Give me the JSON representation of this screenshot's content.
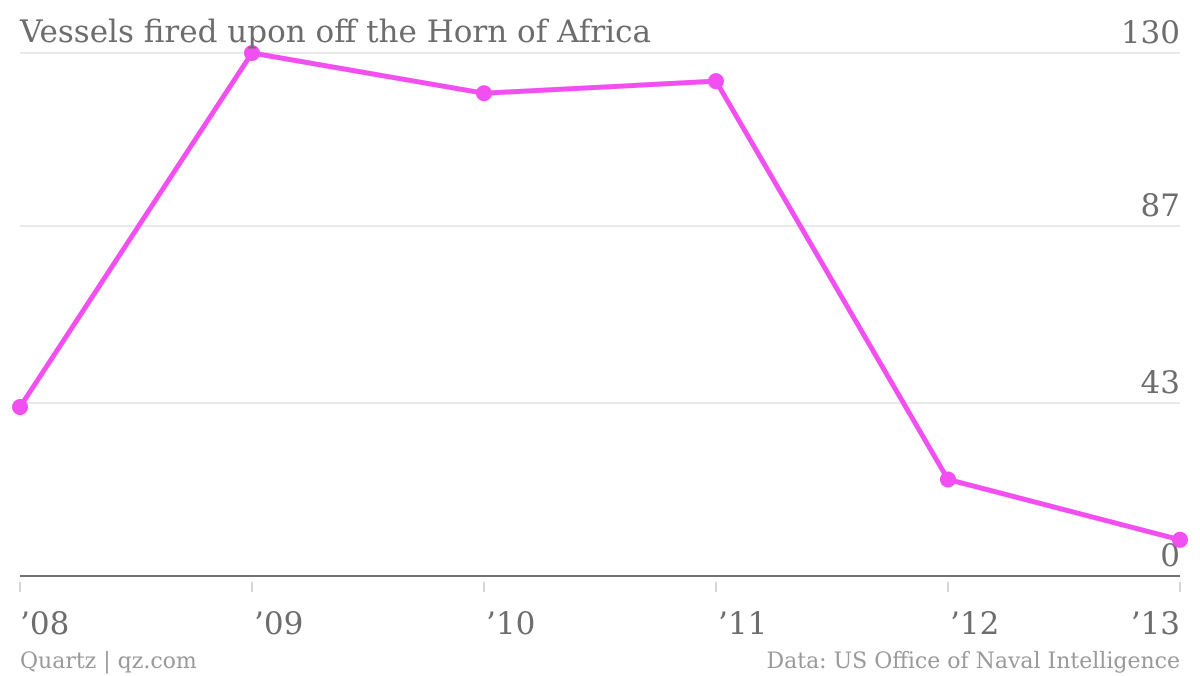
{
  "chart_data": {
    "type": "line",
    "title": "Vessels fired upon off the Horn of Africa",
    "categories": [
      "’08",
      "’09",
      "’10",
      "’11",
      "’12",
      "’13"
    ],
    "series": [
      {
        "values": [
          42,
          130,
          120,
          123,
          24,
          9
        ]
      }
    ],
    "ylim": [
      0,
      130
    ],
    "yticks": [
      0,
      43,
      87,
      130
    ],
    "ytick_labels": [
      "0",
      "43",
      "87",
      "130"
    ],
    "xlabel": "",
    "ylabel": "",
    "grid": true,
    "legend": "none",
    "colors": {
      "line": "#f24ff0",
      "grid": "#e2e2e2",
      "text": "#6d6d6d"
    }
  },
  "footer": {
    "credit": "Quartz | qz.com",
    "source": "Data: US Office of Naval Intelligence"
  }
}
